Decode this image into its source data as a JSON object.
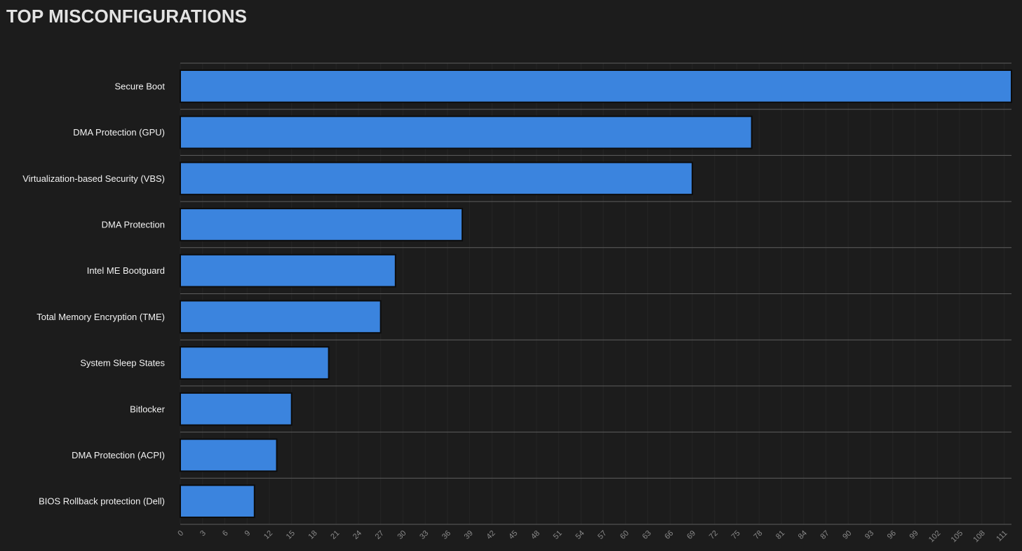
{
  "page": {
    "title": "TOP MISCONFIGURATIONS"
  },
  "colors": {
    "background": "#1c1c1c",
    "bar_fill": "#3b84de",
    "bar_stroke": "#0c0c0c",
    "separator": "#5e5e5e",
    "gridline": "#252525",
    "tick_text": "#8a8a8a",
    "label_text": "#f2f2f2"
  },
  "chart_data": {
    "type": "bar",
    "orientation": "horizontal",
    "title": "TOP MISCONFIGURATIONS",
    "xlabel": "",
    "ylabel": "",
    "categories": [
      "Secure Boot",
      "DMA Protection (GPU)",
      "Virtualization-based Security (VBS)",
      "DMA Protection",
      "Intel ME Bootguard",
      "Total Memory Encryption (TME)",
      "System Sleep States",
      "Bitlocker",
      "DMA Protection (ACPI)",
      "BIOS Rollback protection (Dell)"
    ],
    "values": [
      112,
      77,
      69,
      38,
      29,
      27,
      20,
      15,
      13,
      10
    ],
    "xlim": [
      0,
      112
    ],
    "xticks": [
      0,
      3,
      6,
      9,
      12,
      15,
      18,
      21,
      24,
      27,
      30,
      33,
      36,
      39,
      42,
      45,
      48,
      51,
      54,
      57,
      60,
      63,
      66,
      69,
      72,
      75,
      78,
      81,
      84,
      87,
      90,
      93,
      96,
      99,
      102,
      105,
      108,
      111
    ],
    "grid": true,
    "legend": "none"
  }
}
